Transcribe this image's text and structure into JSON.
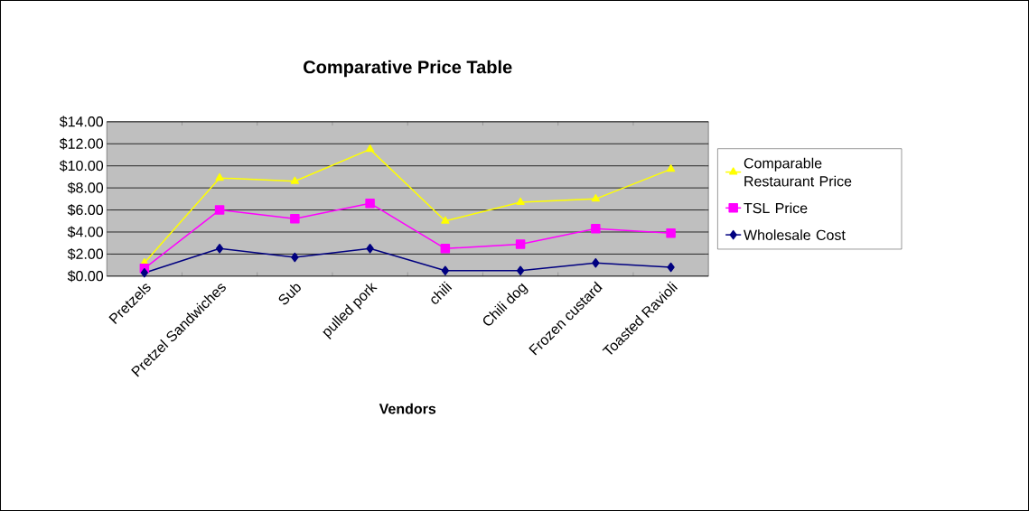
{
  "chart_data": {
    "type": "line",
    "title": "Comparative Price Table",
    "xlabel": "Vendors",
    "categories": [
      "Pretzels",
      "Pretzel Sandwiches",
      "Sub",
      "pulled pork",
      "chili",
      "Chili dog",
      "Frozen custard",
      "Toasted Ravioli"
    ],
    "series": [
      {
        "name": "Comparable Restaurant Price",
        "color": "#ffff00",
        "marker": "triangle",
        "values": [
          1.2,
          8.9,
          8.6,
          11.5,
          5.0,
          6.7,
          7.0,
          9.7
        ]
      },
      {
        "name": "TSL Price",
        "color": "#ff00ff",
        "marker": "square",
        "values": [
          0.7,
          6.0,
          5.2,
          6.6,
          2.5,
          2.9,
          4.3,
          3.9
        ]
      },
      {
        "name": "Wholesale Cost",
        "color": "#000080",
        "marker": "diamond",
        "values": [
          0.3,
          2.5,
          1.7,
          2.5,
          0.5,
          0.5,
          1.2,
          0.8
        ]
      }
    ],
    "ylim": [
      0,
      14
    ],
    "yticks": [
      {
        "value": 0,
        "label": "$0.00"
      },
      {
        "value": 2,
        "label": "$2.00"
      },
      {
        "value": 4,
        "label": "$4.00"
      },
      {
        "value": 6,
        "label": "$6.00"
      },
      {
        "value": 8,
        "label": "$8.00"
      },
      {
        "value": 10,
        "label": "$10.00"
      },
      {
        "value": 12,
        "label": "$12.00"
      },
      {
        "value": 14,
        "label": "$14.00"
      }
    ],
    "grid": "y",
    "legend": "right"
  }
}
